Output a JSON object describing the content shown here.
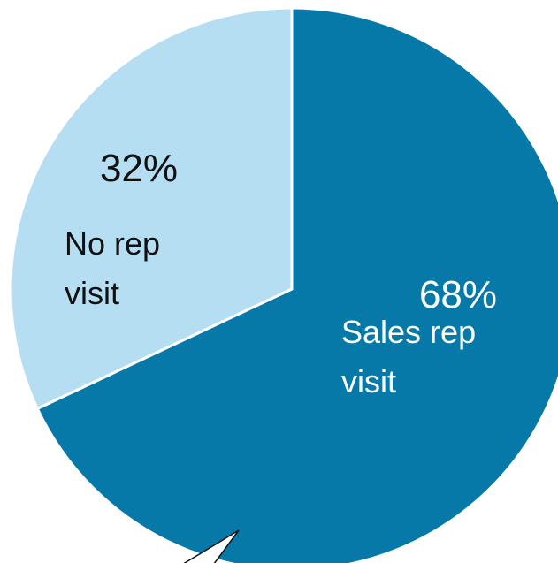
{
  "chart_data": {
    "type": "pie",
    "slices": [
      {
        "label_lines": [
          "Sales rep",
          "visit"
        ],
        "value": 68,
        "value_label": "68%",
        "color": "#0779a8",
        "text_color": "#ffffff"
      },
      {
        "label_lines": [
          "No rep",
          "visit"
        ],
        "value": 32,
        "value_label": "32%",
        "color": "#b5def2",
        "text_color": "#111111"
      }
    ],
    "start_angle_deg": 0,
    "direction": "clockwise",
    "separator_color": "#ffffff"
  }
}
